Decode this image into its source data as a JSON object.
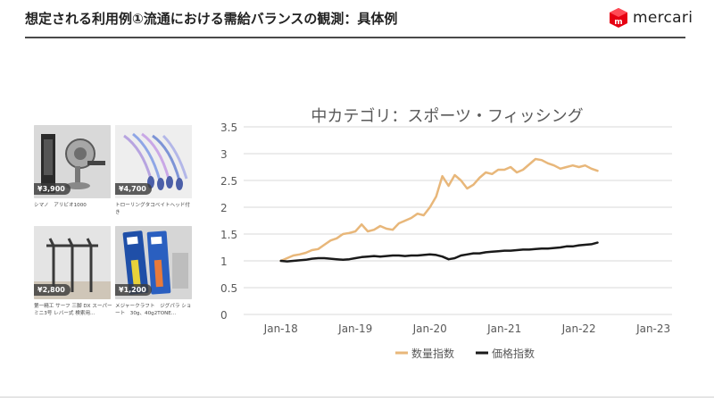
{
  "slide": {
    "title": "想定される利用例①流通における需給バランスの観測：具体例",
    "logo_text": "mercari",
    "brand_color": "#e60012"
  },
  "products": [
    {
      "price": "¥3,900",
      "caption": "シマノ　アリビオ1000"
    },
    {
      "price": "¥4,700",
      "caption": "トローリングタコベイトヘッド付き"
    },
    {
      "price": "¥2,800",
      "caption": "第一精工 サーフ 三脚 DX スーパー ミニ3号 レバー式 検索用..."
    },
    {
      "price": "¥1,200",
      "caption": "メジャークラフト　ジグパラ ショート　30g、40g2TONE..."
    }
  ],
  "chart_data": {
    "type": "line",
    "title": "中カテゴリ：スポーツ・フィッシング",
    "ylim": [
      0,
      3.5
    ],
    "yticks": [
      "0",
      "0.5",
      "1",
      "1.5",
      "2",
      "2.5",
      "3",
      "3.5"
    ],
    "xlim": [
      "2017-07",
      "2023-04"
    ],
    "xticks": [
      "Jan-18",
      "Jan-19",
      "Jan-20",
      "Jan-21",
      "Jan-22",
      "Jan-23"
    ],
    "legend_position": "bottom",
    "grid": true,
    "series": [
      {
        "name": "数量指数",
        "color": "#e8b77a",
        "x": [
          "2018-01",
          "2018-02",
          "2018-03",
          "2018-04",
          "2018-05",
          "2018-06",
          "2018-07",
          "2018-08",
          "2018-09",
          "2018-10",
          "2018-11",
          "2018-12",
          "2019-01",
          "2019-02",
          "2019-03",
          "2019-04",
          "2019-05",
          "2019-06",
          "2019-07",
          "2019-08",
          "2019-09",
          "2019-10",
          "2019-11",
          "2019-12",
          "2020-01",
          "2020-02",
          "2020-03",
          "2020-04",
          "2020-05",
          "2020-06",
          "2020-07",
          "2020-08",
          "2020-09",
          "2020-10",
          "2020-11",
          "2020-12",
          "2021-01",
          "2021-02",
          "2021-03",
          "2021-04",
          "2021-05",
          "2021-06",
          "2021-07",
          "2021-08",
          "2021-09",
          "2021-10",
          "2021-11",
          "2021-12",
          "2022-01",
          "2022-02",
          "2022-03",
          "2022-04"
        ],
        "values": [
          1.0,
          1.05,
          1.1,
          1.12,
          1.15,
          1.2,
          1.22,
          1.3,
          1.38,
          1.42,
          1.5,
          1.52,
          1.55,
          1.68,
          1.55,
          1.58,
          1.65,
          1.6,
          1.58,
          1.7,
          1.75,
          1.8,
          1.88,
          1.85,
          2.0,
          2.2,
          2.58,
          2.4,
          2.6,
          2.5,
          2.35,
          2.42,
          2.55,
          2.65,
          2.62,
          2.7,
          2.7,
          2.75,
          2.65,
          2.7,
          2.8,
          2.9,
          2.88,
          2.82,
          2.78,
          2.72,
          2.75,
          2.78,
          2.75,
          2.78,
          2.72,
          2.68
        ]
      },
      {
        "name": "価格指数",
        "color": "#1a1a1a",
        "x": [
          "2018-01",
          "2018-02",
          "2018-03",
          "2018-04",
          "2018-05",
          "2018-06",
          "2018-07",
          "2018-08",
          "2018-09",
          "2018-10",
          "2018-11",
          "2018-12",
          "2019-01",
          "2019-02",
          "2019-03",
          "2019-04",
          "2019-05",
          "2019-06",
          "2019-07",
          "2019-08",
          "2019-09",
          "2019-10",
          "2019-11",
          "2019-12",
          "2020-01",
          "2020-02",
          "2020-03",
          "2020-04",
          "2020-05",
          "2020-06",
          "2020-07",
          "2020-08",
          "2020-09",
          "2020-10",
          "2020-11",
          "2020-12",
          "2021-01",
          "2021-02",
          "2021-03",
          "2021-04",
          "2021-05",
          "2021-06",
          "2021-07",
          "2021-08",
          "2021-09",
          "2021-10",
          "2021-11",
          "2021-12",
          "2022-01",
          "2022-02",
          "2022-03",
          "2022-04"
        ],
        "values": [
          1.0,
          0.99,
          1.0,
          1.01,
          1.02,
          1.04,
          1.05,
          1.05,
          1.04,
          1.03,
          1.02,
          1.03,
          1.05,
          1.07,
          1.08,
          1.09,
          1.08,
          1.09,
          1.1,
          1.1,
          1.09,
          1.1,
          1.1,
          1.11,
          1.12,
          1.11,
          1.08,
          1.03,
          1.05,
          1.1,
          1.12,
          1.14,
          1.14,
          1.16,
          1.17,
          1.18,
          1.19,
          1.19,
          1.2,
          1.21,
          1.21,
          1.22,
          1.23,
          1.23,
          1.24,
          1.25,
          1.27,
          1.27,
          1.29,
          1.3,
          1.31,
          1.34
        ]
      }
    ]
  }
}
